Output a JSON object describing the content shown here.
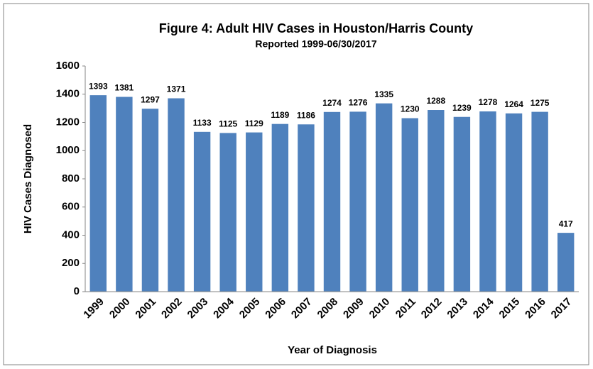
{
  "chart_data": {
    "type": "bar",
    "title": "Figure 4: Adult HIV Cases in Houston/Harris County",
    "subtitle": "Reported 1999-06/30/2017",
    "x_label": "Year of Diagnosis",
    "y_label": "HIV Cases Diagnosed",
    "categories": [
      "1999",
      "2000",
      "2001",
      "2002",
      "2003",
      "2004",
      "2005",
      "2006",
      "2007",
      "2008",
      "2009",
      "2010",
      "2011",
      "2012",
      "2013",
      "2014",
      "2015",
      "2016",
      "2017"
    ],
    "values": [
      1393,
      1381,
      1297,
      1371,
      1133,
      1125,
      1129,
      1189,
      1186,
      1274,
      1276,
      1335,
      1230,
      1288,
      1239,
      1278,
      1264,
      1275,
      417
    ],
    "color": "#4f81bd",
    "ylim": [
      0,
      1600
    ],
    "yticks": [
      0,
      200,
      400,
      600,
      800,
      1000,
      1200,
      1400,
      1600
    ],
    "grid": false
  }
}
